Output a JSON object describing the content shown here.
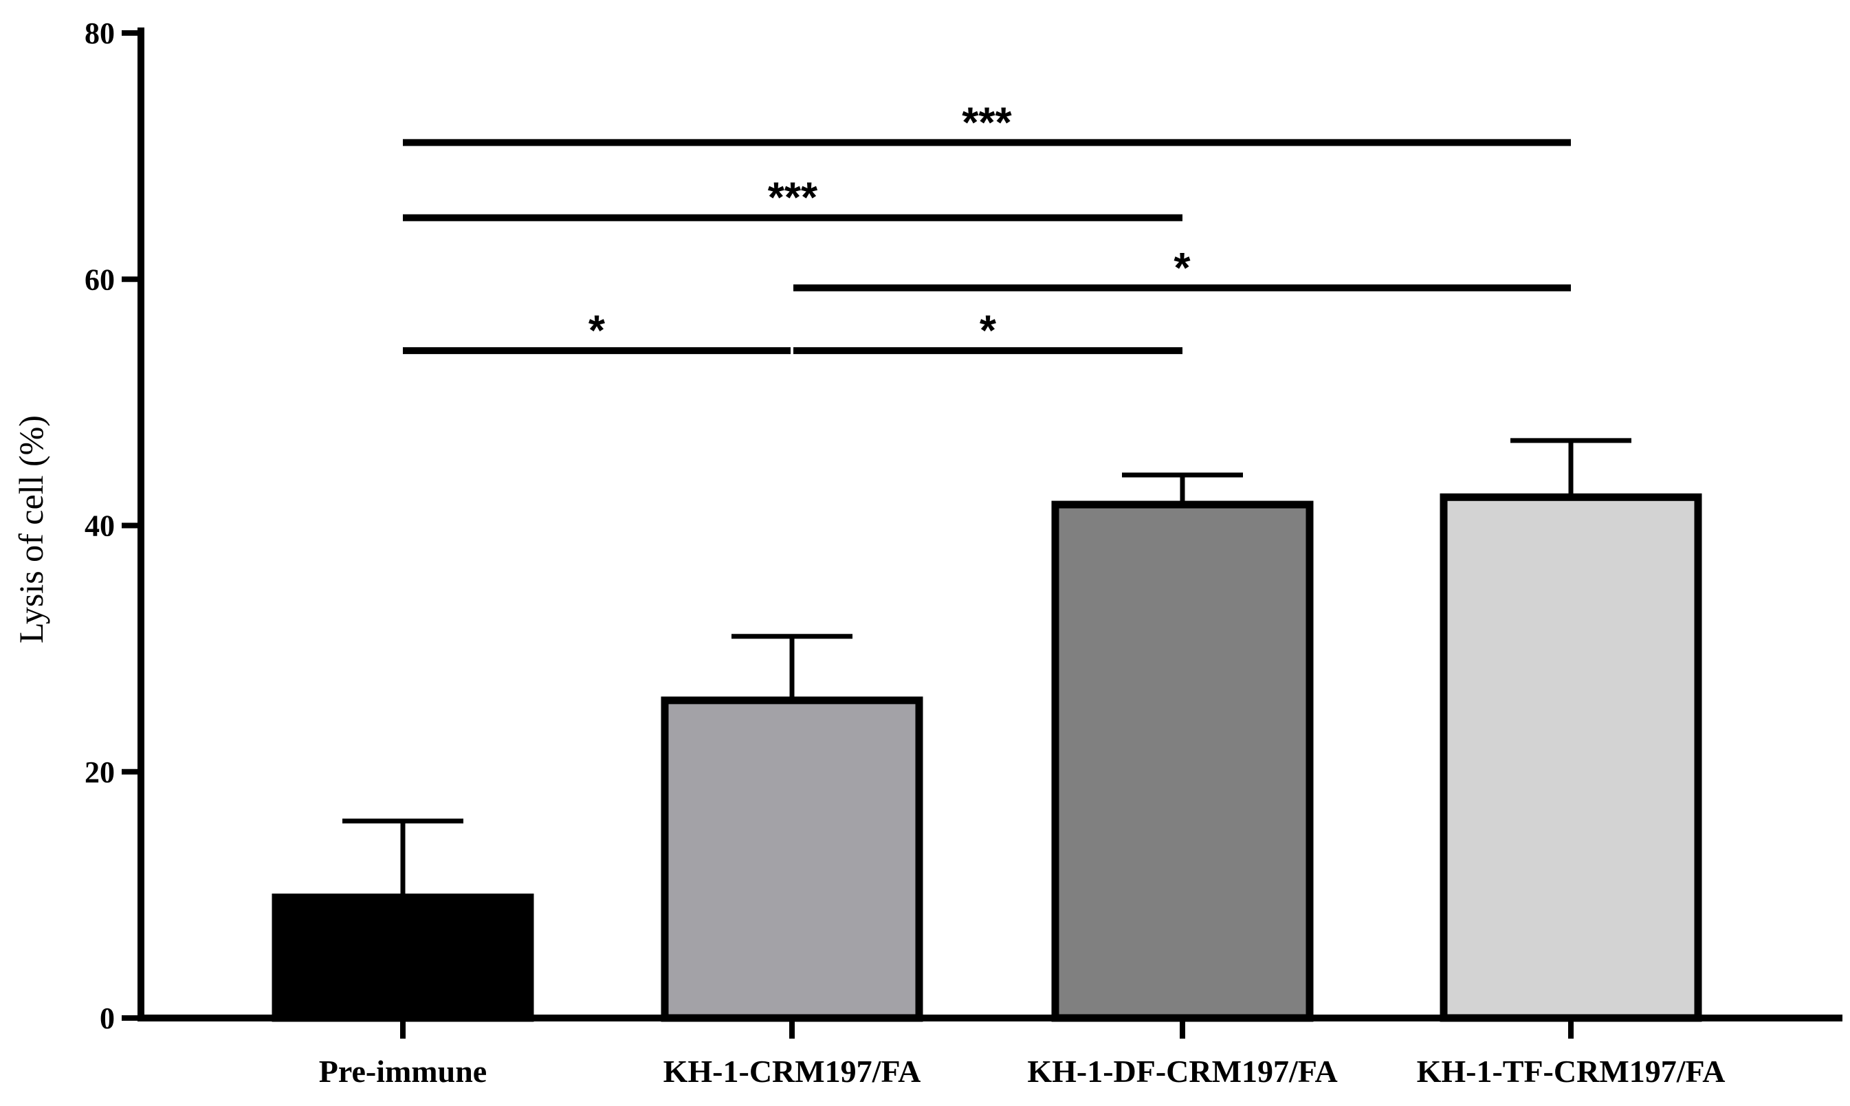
{
  "chart_data": {
    "type": "bar",
    "title": "",
    "xlabel": "",
    "ylabel": "Lysis of cell (%)",
    "ylim": [
      0,
      80
    ],
    "yticks": [
      "0",
      "20",
      "40",
      "60",
      "80"
    ],
    "grid": false,
    "categories": [
      "Pre-immune",
      "KH-1-CRM197/FA",
      "KH-1-DF-CRM197/FA",
      "KH-1-TF-CRM197/FA"
    ],
    "values": [
      9.8,
      25.8,
      41.7,
      42.3
    ],
    "errors": [
      6.2,
      5.2,
      2.4,
      4.6
    ],
    "bar_colors": [
      "#000000",
      "#a3a2a7",
      "#808080",
      "#d3d3d3"
    ],
    "significance": [
      {
        "from": 0,
        "to": 1,
        "y": 54.2,
        "label": "*"
      },
      {
        "from": 1,
        "to": 2,
        "y": 54.2,
        "label": "*"
      },
      {
        "from": 1,
        "to": 3,
        "y": 59.3,
        "label": "*"
      },
      {
        "from": 0,
        "to": 2,
        "y": 65.0,
        "label": "***"
      },
      {
        "from": 0,
        "to": 3,
        "y": 71.1,
        "label": "***"
      }
    ]
  }
}
